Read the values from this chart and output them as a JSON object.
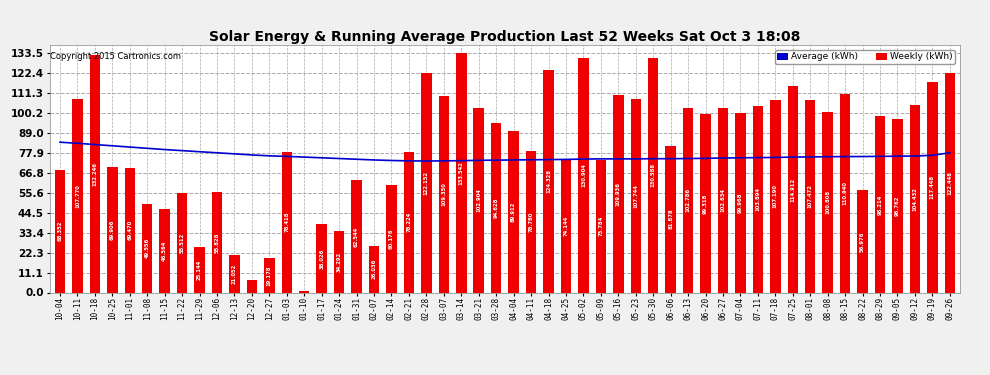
{
  "title": "Solar Energy & Running Average Production Last 52 Weeks Sat Oct 3 18:08",
  "copyright": "Copyright 2015 Cartronics.com",
  "bar_color": "#ee0000",
  "line_color": "#0000cc",
  "background_color": "#f0f0f0",
  "categories": [
    "10-04",
    "10-11",
    "10-18",
    "10-25",
    "11-01",
    "11-08",
    "11-15",
    "11-22",
    "11-29",
    "12-06",
    "12-13",
    "12-20",
    "12-27",
    "01-03",
    "01-10",
    "01-17",
    "01-24",
    "01-31",
    "02-07",
    "02-14",
    "02-21",
    "02-28",
    "03-07",
    "03-14",
    "03-21",
    "03-28",
    "04-04",
    "04-11",
    "04-18",
    "04-25",
    "05-02",
    "05-09",
    "05-16",
    "05-23",
    "05-30",
    "06-06",
    "06-13",
    "06-20",
    "06-27",
    "07-04",
    "07-11",
    "07-18",
    "07-25",
    "08-01",
    "08-08",
    "08-15",
    "08-22",
    "08-29",
    "09-05",
    "09-12",
    "09-19",
    "09-26"
  ],
  "weekly_values": [
    68.352,
    107.77,
    132.246,
    69.906,
    69.47,
    49.556,
    46.564,
    55.512,
    25.144,
    55.828,
    21.052,
    6.808,
    19.178,
    78.418,
    1.03,
    38.026,
    34.292,
    62.544,
    26.036,
    60.176,
    78.224,
    122.152,
    109.35,
    133.542,
    102.904,
    94.628,
    89.912,
    78.78,
    124.328,
    74.144,
    130.904,
    73.784,
    109.936,
    107.744,
    130.588,
    81.878,
    102.786,
    99.318,
    102.634,
    99.968,
    103.894,
    107.19,
    114.912,
    107.472,
    100.808,
    110.94,
    56.976,
    98.214,
    96.762,
    104.432,
    117.448,
    122.448
  ],
  "average_values": [
    83.8,
    83.2,
    82.5,
    81.8,
    81.1,
    80.4,
    79.7,
    79.1,
    78.5,
    77.9,
    77.3,
    76.7,
    76.2,
    75.9,
    75.5,
    75.1,
    74.7,
    74.3,
    73.9,
    73.6,
    73.4,
    73.3,
    73.4,
    73.5,
    73.7,
    73.8,
    73.9,
    74.0,
    74.1,
    74.2,
    74.4,
    74.5,
    74.5,
    74.5,
    74.6,
    74.6,
    74.7,
    74.8,
    75.0,
    75.1,
    75.2,
    75.3,
    75.5,
    75.6,
    75.7,
    75.8,
    75.8,
    75.9,
    76.0,
    76.1,
    76.5,
    77.9
  ],
  "yticks": [
    0.0,
    11.1,
    22.3,
    33.4,
    44.5,
    55.6,
    66.8,
    77.9,
    89.0,
    100.2,
    111.3,
    122.4,
    133.5
  ],
  "ylim": [
    0,
    138
  ],
  "legend_avg_color": "#0000cc",
  "legend_avg_label": "Average (kWh)",
  "legend_weekly_color": "#ee0000",
  "legend_weekly_label": "Weekly (kWh)"
}
